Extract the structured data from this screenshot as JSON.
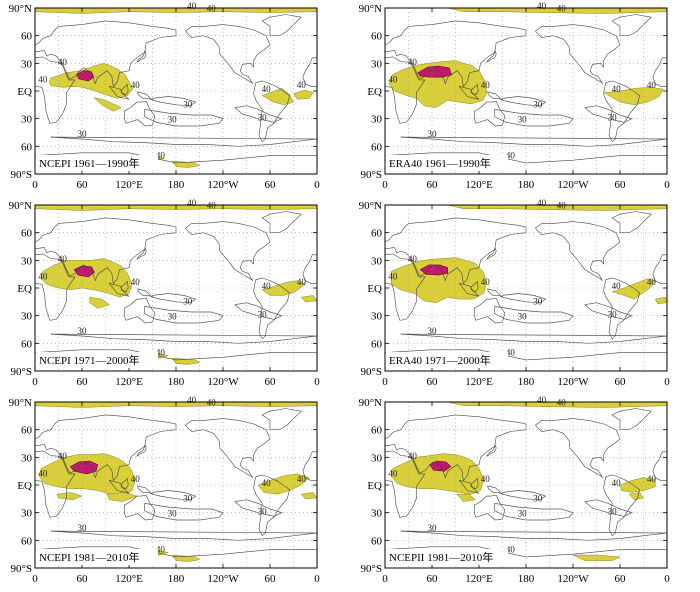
{
  "axes": {
    "lat_ticks": [
      "90°N",
      "60",
      "30",
      "EQ",
      "30",
      "60",
      "90°S"
    ],
    "lon_ticks": [
      "0",
      "60",
      "120°E",
      "180",
      "120°W",
      "60",
      "0"
    ]
  },
  "contour_labels": {
    "high": "40",
    "low": "30"
  },
  "colors": {
    "yellow_fill": "#d8cf3a",
    "magenta_fill": "#c2186e",
    "contour_line": "#555555",
    "coastline": "#444444",
    "grid": "#999999"
  },
  "panels": [
    {
      "title": "NCEPI  1961—1990年"
    },
    {
      "title": "ERA40  1961—1990年"
    },
    {
      "title": "NCEPI  1971—2000年"
    },
    {
      "title": "ERA40  1971—2000年"
    },
    {
      "title": "NCEPI  1981—2010年"
    },
    {
      "title": "NCEPII  1981—2010年"
    }
  ]
}
